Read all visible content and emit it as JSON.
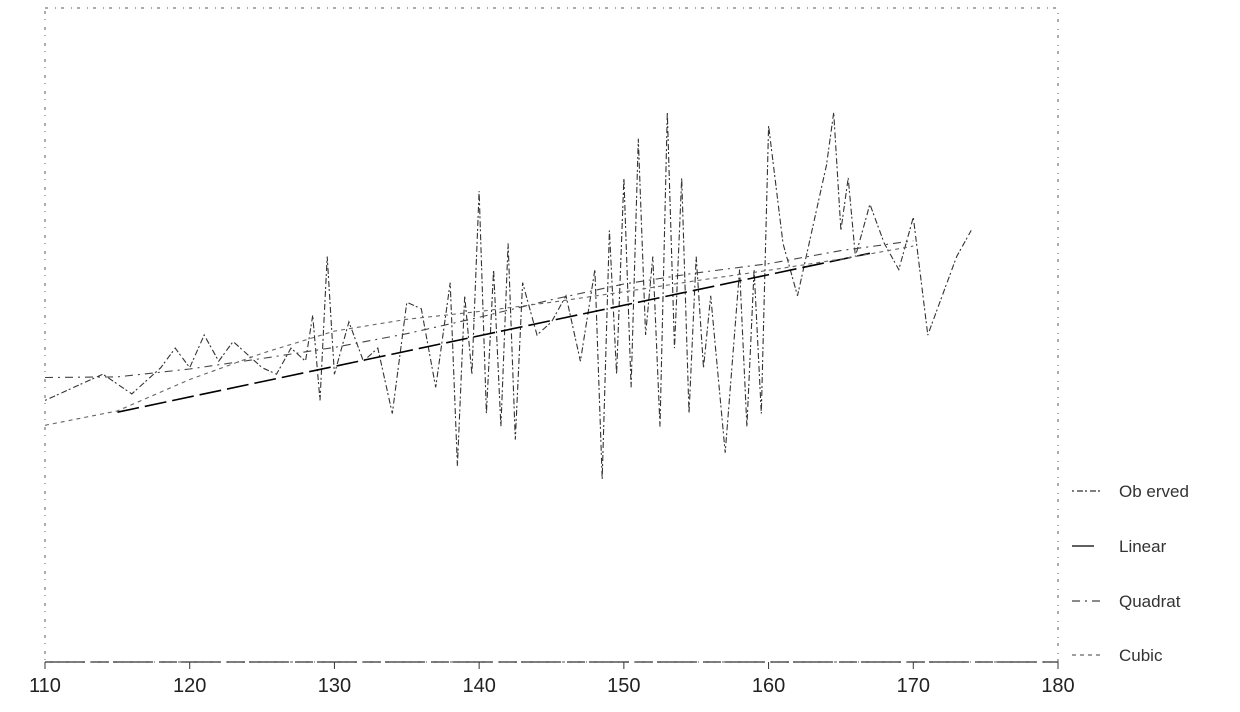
{
  "chart_data": {
    "type": "line",
    "title": "",
    "xlabel": "",
    "ylabel": "",
    "xlim": [
      110,
      180
    ],
    "ylim": [
      0,
      100
    ],
    "x_ticks": [
      110,
      120,
      130,
      140,
      150,
      160,
      170,
      180
    ],
    "grid": false,
    "legend_position": "right",
    "series": [
      {
        "name": "Observed",
        "style": "line",
        "color": "#333333",
        "x": [
          110,
          112,
          114,
          116,
          118,
          119,
          120,
          121,
          122,
          123,
          124,
          125,
          126,
          127,
          128,
          128.5,
          129,
          129.5,
          130,
          131,
          132,
          133,
          134,
          135,
          136,
          137,
          138,
          138.5,
          139,
          139.5,
          140,
          140.5,
          141,
          141.5,
          142,
          142.5,
          143,
          144,
          145,
          146,
          147,
          148,
          148.5,
          149,
          149.5,
          150,
          150.5,
          151,
          151.5,
          152,
          152.5,
          153,
          153.5,
          154,
          154.5,
          155,
          155.5,
          156,
          157,
          158,
          158.5,
          159,
          159.5,
          160,
          161,
          162,
          163,
          164,
          164.5,
          165,
          165.5,
          166,
          167,
          168,
          169,
          170,
          171,
          172,
          173,
          174
        ],
        "y": [
          40,
          42,
          44,
          41,
          45,
          48,
          45,
          50,
          46,
          49,
          47,
          45,
          44,
          48,
          46,
          53,
          40,
          62,
          44,
          52,
          46,
          48,
          38,
          55,
          54,
          42,
          58,
          30,
          56,
          44,
          72,
          38,
          60,
          36,
          64,
          34,
          58,
          50,
          52,
          56,
          46,
          60,
          28,
          66,
          44,
          74,
          42,
          80,
          50,
          62,
          36,
          84,
          48,
          74,
          38,
          62,
          45,
          56,
          32,
          60,
          36,
          60,
          38,
          82,
          64,
          56,
          66,
          76,
          84,
          66,
          74,
          62,
          70,
          64,
          60,
          68,
          50,
          56,
          62,
          66
        ]
      },
      {
        "name": "Linear",
        "style": "line",
        "color": "#000000",
        "x": [
          115,
          167
        ],
        "y": [
          38.2,
          62.5
        ]
      },
      {
        "name": "Quadratic",
        "style": "line",
        "color": "#444444",
        "x": [
          110,
          115,
          120,
          125,
          130,
          135,
          140,
          145,
          150,
          155,
          160,
          165,
          170
        ],
        "y": [
          43.5,
          43.6,
          44.8,
          46.4,
          48.1,
          50.2,
          52.7,
          55.4,
          57.8,
          59.5,
          60.9,
          62.9,
          64.4
        ]
      },
      {
        "name": "Cubic",
        "style": "line",
        "color": "#666666",
        "x": [
          110,
          115,
          120,
          125,
          130,
          135,
          140,
          145,
          150,
          155,
          160,
          165,
          170
        ],
        "y": [
          36.2,
          38.4,
          43.2,
          47.2,
          50.6,
          52.4,
          53.6,
          55.0,
          56.6,
          58.3,
          59.9,
          61.6,
          63.6
        ]
      }
    ],
    "legend": [
      "Observed",
      "Linear",
      "Quadratic",
      "Cubic"
    ],
    "legend_display": [
      "Ob erved",
      "Linear",
      "Quadrat",
      "Cubic"
    ]
  }
}
